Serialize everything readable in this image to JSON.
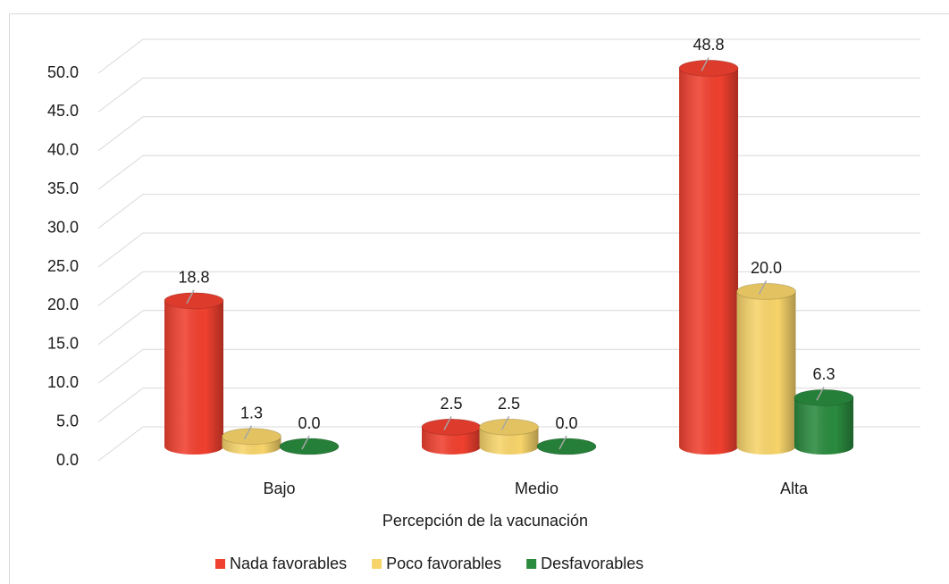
{
  "chart_data": {
    "type": "bar3d_cylinder",
    "x_label": "Percepción de la vacunación",
    "categories": [
      "Bajo",
      "Medio",
      "Alta"
    ],
    "series": [
      {
        "name": "Nada favorables",
        "color": "#f0402f",
        "values": [
          18.8,
          2.5,
          48.8
        ],
        "value_labels": [
          "18.8",
          "2.5",
          "48.8"
        ]
      },
      {
        "name": "Poco favorables",
        "color": "#f7d46a",
        "values": [
          1.3,
          2.5,
          20
        ],
        "value_labels": [
          "1.3",
          "2.5",
          "20.0"
        ]
      },
      {
        "name": "Desfavorables",
        "color": "#2a8a3e",
        "values": [
          0,
          0,
          6.3
        ],
        "value_labels": [
          "0.0",
          "0.0",
          "6.3"
        ]
      }
    ],
    "ylim": [
      0,
      50
    ],
    "yticks": [
      {
        "value": 0,
        "label": "0.0"
      },
      {
        "value": 5,
        "label": "5.0"
      },
      {
        "value": 10,
        "label": "10.0"
      },
      {
        "value": 15,
        "label": "15.0"
      },
      {
        "value": 20,
        "label": "20.0"
      },
      {
        "value": 25,
        "label": "25.0"
      },
      {
        "value": 30,
        "label": "30.0"
      },
      {
        "value": 35,
        "label": "35.0"
      },
      {
        "value": 40,
        "label": "40.0"
      },
      {
        "value": 45,
        "label": "45.0"
      },
      {
        "value": 50,
        "label": "50.0"
      }
    ],
    "grid": true,
    "legend": "bottom"
  }
}
